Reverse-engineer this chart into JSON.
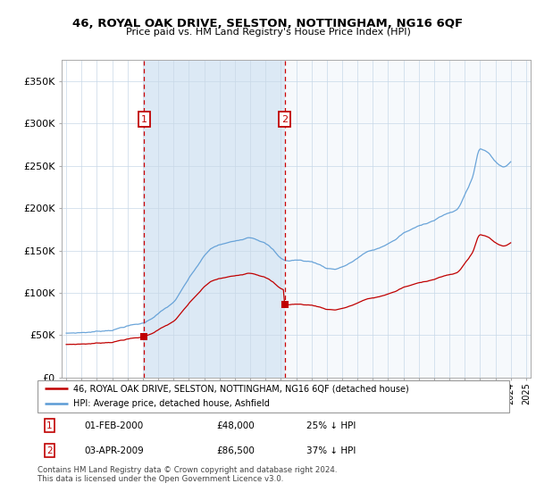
{
  "title": "46, ROYAL OAK DRIVE, SELSTON, NOTTINGHAM, NG16 6QF",
  "subtitle": "Price paid vs. HM Land Registry's House Price Index (HPI)",
  "legend_line1": "46, ROYAL OAK DRIVE, SELSTON, NOTTINGHAM, NG16 6QF (detached house)",
  "legend_line2": "HPI: Average price, detached house, Ashfield",
  "footnote": "Contains HM Land Registry data © Crown copyright and database right 2024.\nThis data is licensed under the Open Government Licence v3.0.",
  "transaction1": {
    "label": "1",
    "date": "01-FEB-2000",
    "price": "£48,000",
    "pct": "25% ↓ HPI"
  },
  "transaction2": {
    "label": "2",
    "date": "03-APR-2009",
    "price": "£86,500",
    "pct": "37% ↓ HPI"
  },
  "marker1_year": 2000.083,
  "marker1_price": 48000,
  "marker2_year": 2009.25,
  "marker2_price": 86500,
  "vline1_year": 2000.083,
  "vline2_year": 2009.25,
  "hpi_color": "#5b9bd5",
  "price_color": "#c00000",
  "vline_color": "#cc0000",
  "shade_color": "#dce9f5",
  "plot_bg": "#ffffff",
  "ylim": [
    0,
    375000
  ],
  "yticks": [
    0,
    50000,
    100000,
    150000,
    200000,
    250000,
    300000,
    350000
  ],
  "xlim_start": 1994.7,
  "xlim_end": 2025.3
}
